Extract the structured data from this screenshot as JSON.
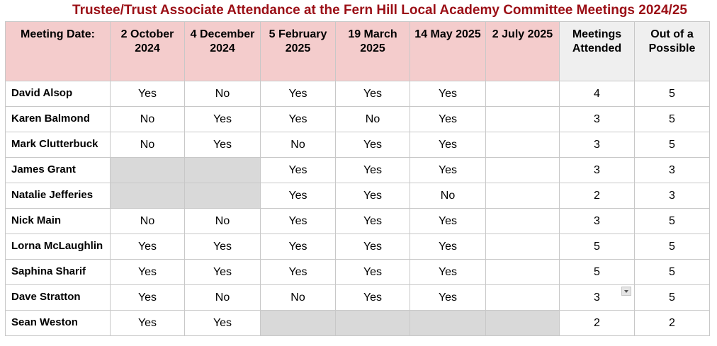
{
  "title": "Trustee/Trust Associate Attendance at the Fern Hill Local Academy Committee Meetings 2024/25",
  "header": {
    "label": "Meeting Date:",
    "dates": [
      "2 October 2024",
      "4 December 2024",
      "5 February 2025",
      "19 March 2025",
      "14 May 2025",
      "2 July 2025"
    ],
    "attended": "Meetings Attended",
    "possible": "Out of a Possible"
  },
  "rows": [
    {
      "name": "David Alsop",
      "cells": [
        "Yes",
        "No",
        "Yes",
        "Yes",
        "Yes",
        ""
      ],
      "attended": "4",
      "possible": "5"
    },
    {
      "name": "Karen Balmond",
      "cells": [
        "No",
        "Yes",
        "Yes",
        "No",
        "Yes",
        ""
      ],
      "attended": "3",
      "possible": "5"
    },
    {
      "name": "Mark Clutterbuck",
      "cells": [
        "No",
        "Yes",
        "No",
        "Yes",
        "Yes",
        ""
      ],
      "attended": "3",
      "possible": "5"
    },
    {
      "name": "James Grant",
      "cells": [
        "",
        "",
        "Yes",
        "Yes",
        "Yes",
        ""
      ],
      "attended": "3",
      "possible": "3"
    },
    {
      "name": "Natalie Jefferies",
      "cells": [
        "",
        "",
        "Yes",
        "Yes",
        "No",
        ""
      ],
      "attended": "2",
      "possible": "3"
    },
    {
      "name": "Nick Main",
      "cells": [
        "No",
        "No",
        "Yes",
        "Yes",
        "Yes",
        ""
      ],
      "attended": "3",
      "possible": "5"
    },
    {
      "name": "Lorna McLaughlin",
      "cells": [
        "Yes",
        "Yes",
        "Yes",
        "Yes",
        "Yes",
        ""
      ],
      "attended": "5",
      "possible": "5"
    },
    {
      "name": "Saphina Sharif",
      "cells": [
        "Yes",
        "Yes",
        "Yes",
        "Yes",
        "Yes",
        ""
      ],
      "attended": "5",
      "possible": "5"
    },
    {
      "name": "Dave Stratton",
      "cells": [
        "Yes",
        "No",
        "No",
        "Yes",
        "Yes",
        ""
      ],
      "attended": "3",
      "possible": "5"
    },
    {
      "name": "Sean Weston",
      "cells": [
        "Yes",
        "Yes",
        "",
        "",
        "",
        ""
      ],
      "attended": "2",
      "possible": "2"
    }
  ],
  "colors": {
    "title": "#9b0f16",
    "header_pink": "#f4cccc",
    "header_grey": "#efefef",
    "not_applicable": "#d9d9d9",
    "border": "#c8c8c8"
  },
  "icons": {
    "dropdown": "chevron-down-icon"
  }
}
